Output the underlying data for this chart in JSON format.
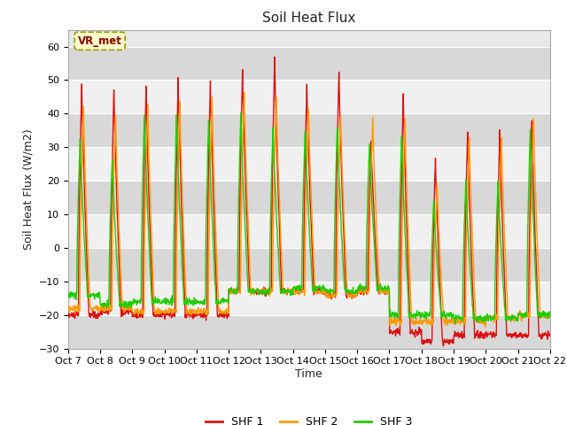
{
  "title": "Soil Heat Flux",
  "ylabel": "Soil Heat Flux (W/m2)",
  "xlabel": "Time",
  "ylim": [
    -30,
    65
  ],
  "yticks": [
    -30,
    -20,
    -10,
    0,
    10,
    20,
    30,
    40,
    50,
    60
  ],
  "x_labels": [
    "Oct 7",
    "Oct 8",
    "Oct 9",
    "Oct 10",
    "Oct 11",
    "Oct 12",
    "Oct 13",
    "Oct 14",
    "Oct 15",
    "Oct 16",
    "Oct 17",
    "Oct 18",
    "Oct 19",
    "Oct 20",
    "Oct 21",
    "Oct 22"
  ],
  "colors": {
    "SHF 1": "#dd1111",
    "SHF 2": "#ff9900",
    "SHF 3": "#22cc00"
  },
  "legend_label": "VR_met",
  "fig_bg": "#ffffff",
  "plot_bg": "#e8e8e8",
  "band_light": "#f0f0f0",
  "band_dark": "#d8d8d8",
  "linewidth": 1.0,
  "n_days": 15,
  "points_per_day": 96,
  "title_fontsize": 11,
  "label_fontsize": 9,
  "tick_fontsize": 8
}
